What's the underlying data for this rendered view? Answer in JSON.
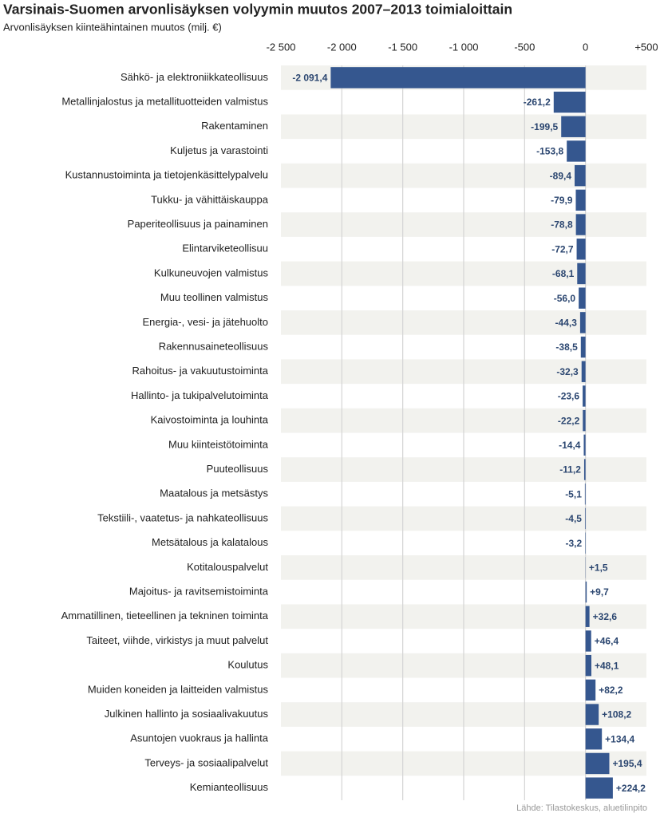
{
  "chart_data": {
    "type": "bar",
    "orientation": "horizontal",
    "title": "Varsinais-Suomen arvonlisäyksen volyymin muutos 2007–2013 toimialoittain",
    "subtitle": "Arvonlisäyksen kiinteähintainen muutos (milj. €)",
    "source": "Lähde: Tilastokeskus, aluetilinpito",
    "color": "#35578f",
    "grid": true,
    "xlim": [
      -2500,
      500
    ],
    "xticks": [
      {
        "value": -2500,
        "label": "-2 500"
      },
      {
        "value": -2000,
        "label": "-2 000"
      },
      {
        "value": -1500,
        "label": "-1 500"
      },
      {
        "value": -1000,
        "label": "-1 000"
      },
      -500,
      0,
      {
        "value": 500,
        "label": "+500"
      }
    ],
    "categories": [
      "Sähkö- ja elektroniikkateollisuus",
      "Metallinjalostus ja metallituotteiden valmistus",
      "Rakentaminen",
      "Kuljetus ja varastointi",
      "Kustannustoiminta ja tietojenkäsittelypalvelu",
      "Tukku- ja vähittäiskauppa",
      "Paperiteollisuus ja painaminen",
      "Elintarviketeollisuu",
      "Kulkuneuvojen valmistus",
      "Muu teollinen valmistus",
      "Energia-, vesi- ja jätehuolto",
      "Rakennusaineteollisuus",
      "Rahoitus- ja vakuutustoiminta",
      "Hallinto- ja tukipalvelutoiminta",
      "Kaivostoiminta ja louhinta",
      "Muu kiinteistötoiminta",
      "Puuteollisuus",
      "Maatalous ja metsästys",
      "Tekstiili-, vaatetus- ja nahkateollisuus",
      "Metsätalous ja kalatalous",
      "Kotitalouspalvelut",
      "Majoitus- ja ravitsemistoiminta",
      "Ammatillinen, tieteellinen ja tekninen toiminta",
      "Taiteet, viihde, virkistys ja muut palvelut",
      "Koulutus",
      "Muiden koneiden ja laitteiden valmistus",
      "Julkinen hallinto ja sosiaalivakuutus",
      "Asuntojen vuokraus ja hallinta",
      "Terveys- ja sosiaalipalvelut",
      "Kemianteollisuus"
    ],
    "values": [
      -2091.4,
      -261.2,
      -199.5,
      -153.8,
      -89.4,
      -79.9,
      -78.8,
      -72.7,
      -68.1,
      -56.0,
      -44.3,
      -38.5,
      -32.3,
      -23.6,
      -22.2,
      -14.4,
      -11.2,
      -5.1,
      -4.5,
      -3.2,
      1.5,
      9.7,
      32.6,
      46.4,
      48.1,
      82.2,
      108.2,
      134.4,
      195.4,
      224.2
    ],
    "value_labels": [
      "-2 091,4",
      "-261,2",
      "-199,5",
      "-153,8",
      "-89,4",
      "-79,9",
      "-78,8",
      "-72,7",
      "-68,1",
      "-56,0",
      "-44,3",
      "-38,5",
      "-32,3",
      "-23,6",
      "-22,2",
      "-14,4",
      "-11,2",
      "-5,1",
      "-4,5",
      "-3,2",
      "+1,5",
      "+9,7",
      "+32,6",
      "+46,4",
      "+48,1",
      "+82,2",
      "+108,2",
      "+134,4",
      "+195,4",
      "+224,2"
    ]
  }
}
